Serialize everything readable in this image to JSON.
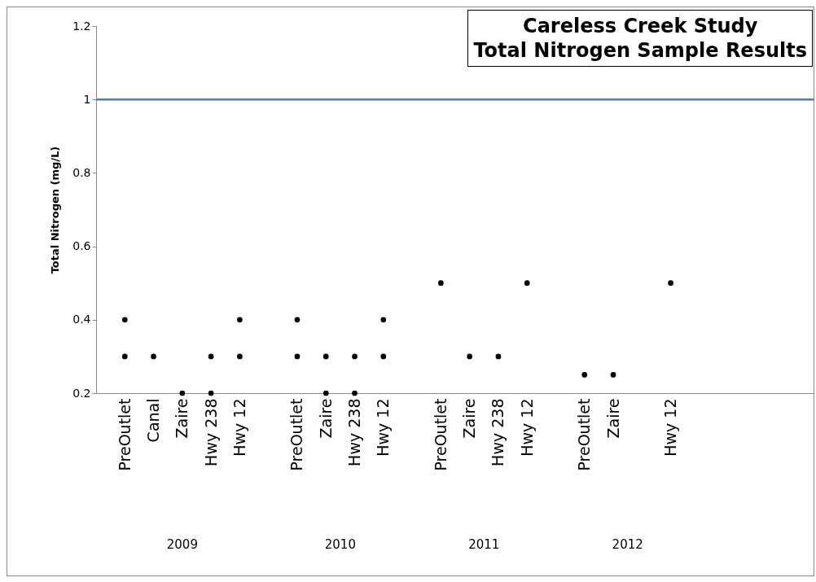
{
  "chart_data": {
    "type": "scatter",
    "title": "Careless Creek Study\nTotal Nitrogen Sample Results",
    "ylabel": "Total Nitrogen (mg/L)",
    "categories": [
      null,
      "PreOutlet",
      "Canal",
      "Zaire",
      "Hwy 238",
      "Hwy 12",
      null,
      "PreOutlet",
      "Zaire",
      "Hwy 238",
      "Hwy 12",
      null,
      "PreOutlet",
      "Zaire",
      "Hwy 238",
      "Hwy 12",
      null,
      "PreOutlet",
      "Zaire",
      null,
      "Hwy 12",
      null,
      null,
      null,
      null,
      null
    ],
    "series": [
      {
        "color": "#000000",
        "values": [
          null,
          0.4,
          0.3,
          0.2,
          0.3,
          0.4,
          null,
          0.4,
          0.3,
          0.3,
          0.4,
          null,
          0.5,
          0.3,
          0.3,
          0.5,
          null,
          0.25,
          0.25,
          null,
          0.5,
          null,
          null,
          null,
          null,
          null
        ]
      },
      {
        "color": "#000000",
        "values": [
          null,
          0.3,
          null,
          null,
          0.2,
          0.3,
          null,
          0.3,
          0.2,
          0.2,
          0.3,
          null,
          null,
          null,
          null,
          null,
          null,
          null,
          null,
          null,
          null,
          null,
          null,
          null,
          null,
          null
        ]
      }
    ],
    "annotations": [
      "2009",
      "2010",
      "2011",
      "2012"
    ],
    "ref_lines": [
      {
        "axis": "y",
        "value": 1,
        "color": "#4a7ebb"
      }
    ],
    "ylim": [
      0.2,
      1.2
    ],
    "yticks": [
      0.2,
      0.4,
      0.6,
      0.8,
      1,
      1.2
    ],
    "marker": "circle"
  }
}
